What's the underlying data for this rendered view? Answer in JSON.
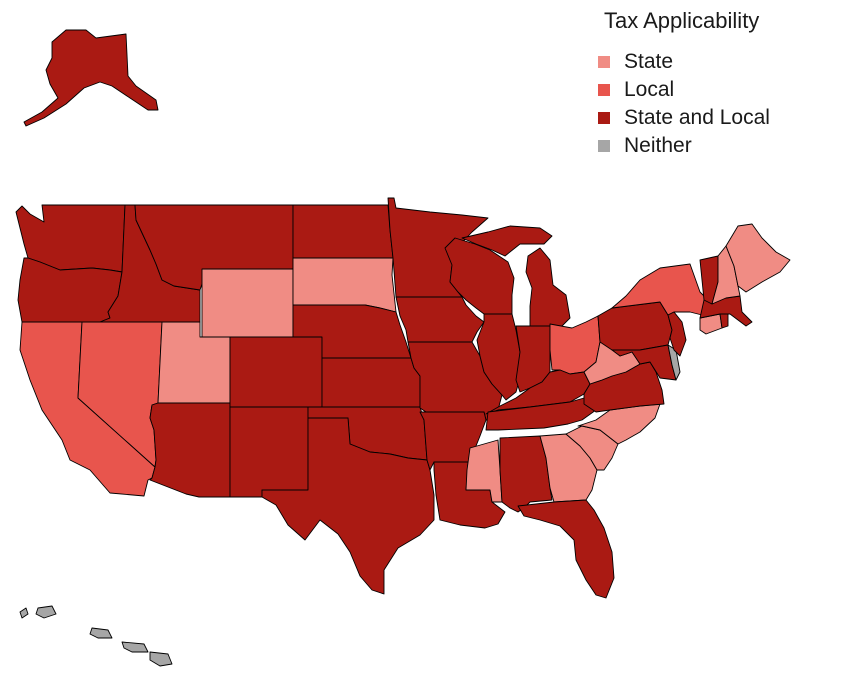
{
  "legend": {
    "title": "Tax Applicability",
    "items": [
      {
        "key": "state",
        "label": "State",
        "color": "#F08C84"
      },
      {
        "key": "local",
        "label": "Local",
        "color": "#E8554D"
      },
      {
        "key": "both",
        "label": "State and Local",
        "color": "#AA1A13"
      },
      {
        "key": "neither",
        "label": "Neither",
        "color": "#A6A6A6"
      }
    ]
  },
  "chart_data": {
    "type": "choropleth",
    "title": "",
    "legend_title": "Tax Applicability",
    "legend_position": "top-right",
    "categories": [
      "State",
      "Local",
      "State and Local",
      "Neither"
    ],
    "states": {
      "AL": "State and Local",
      "AK": "State and Local",
      "AZ": "State and Local",
      "AR": "State and Local",
      "CA": "Local",
      "CO": "State and Local",
      "CT": "State",
      "DE": "Neither",
      "FL": "State and Local",
      "GA": "State",
      "HI": "Neither",
      "ID": "State and Local",
      "IL": "State and Local",
      "IN": "State and Local",
      "IA": "State and Local",
      "KS": "State and Local",
      "KY": "State and Local",
      "LA": "State and Local",
      "ME": "State",
      "MD": "State and Local",
      "MA": "State and Local",
      "MI": "State and Local",
      "MN": "State and Local",
      "MS": "State",
      "MO": "State and Local",
      "MT": "State and Local",
      "NE": "State and Local",
      "NV": "Local",
      "NH": "State",
      "NJ": "State and Local",
      "NM": "State and Local",
      "NY": "Local",
      "NC": "State",
      "ND": "State and Local",
      "OH": "Local",
      "OK": "State and Local",
      "OR": "State and Local",
      "PA": "State and Local",
      "RI": "State and Local",
      "SC": "State",
      "SD": "State",
      "TN": "State and Local",
      "TX": "State and Local",
      "UT": "State",
      "VT": "State and Local",
      "VA": "State and Local",
      "WA": "State and Local",
      "WV": "State",
      "WI": "State and Local",
      "WY": "State"
    }
  }
}
